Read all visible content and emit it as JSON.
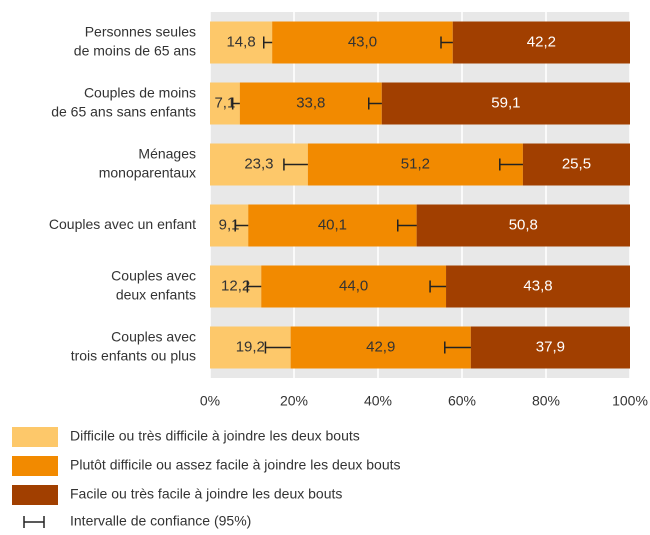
{
  "chart_data": {
    "type": "stacked_bar_horizontal",
    "categories": [
      [
        "Personnes seules",
        "de moins de 65 ans"
      ],
      [
        "Couples de moins",
        "de 65 ans sans enfants"
      ],
      [
        "Ménages",
        "monoparentaux"
      ],
      [
        "Couples avec un enfant"
      ],
      [
        "Couples avec",
        "deux enfants"
      ],
      [
        "Couples avec",
        "trois enfants ou plus"
      ]
    ],
    "series": [
      {
        "name": "Difficile ou très difficile à joindre les deux bouts",
        "color": "#fdc86a",
        "values": [
          14.8,
          7.1,
          23.3,
          9.1,
          12.2,
          19.2
        ],
        "value_labels": [
          "14,8",
          "7,1",
          "23,3",
          "9,1",
          "12,2",
          "19,2"
        ],
        "errors": [
          2.0,
          1.7,
          5.7,
          3.1,
          3.3,
          6.0
        ]
      },
      {
        "name": "Plutôt difficile ou assez facile à joindre les deux bouts",
        "color": "#f28a00",
        "values": [
          43.0,
          33.8,
          51.2,
          40.1,
          44.0,
          42.9
        ],
        "value_labels": [
          "43,0",
          "33,8",
          "51,2",
          "40,1",
          "44,0",
          "42,9"
        ],
        "errors": [
          2.8,
          3.1,
          5.5,
          4.5,
          3.8,
          6.2
        ]
      },
      {
        "name": "Facile ou très facile à joindre les deux bouts",
        "color": "#a13f00",
        "values": [
          42.2,
          59.1,
          25.5,
          50.8,
          43.8,
          37.9
        ],
        "value_labels": [
          "42,2",
          "59,1",
          "25,5",
          "50,8",
          "43,8",
          "37,9"
        ]
      }
    ],
    "error_label": "Intervalle de confiance (95%)",
    "xlim": [
      0,
      100
    ],
    "xticks": [
      {
        "value": 0,
        "label": "0%"
      },
      {
        "value": 20,
        "label": "20%"
      },
      {
        "value": 40,
        "label": "40%"
      },
      {
        "value": 60,
        "label": "60%"
      },
      {
        "value": 80,
        "label": "80%"
      },
      {
        "value": 100,
        "label": "100%"
      }
    ],
    "grid": true
  }
}
